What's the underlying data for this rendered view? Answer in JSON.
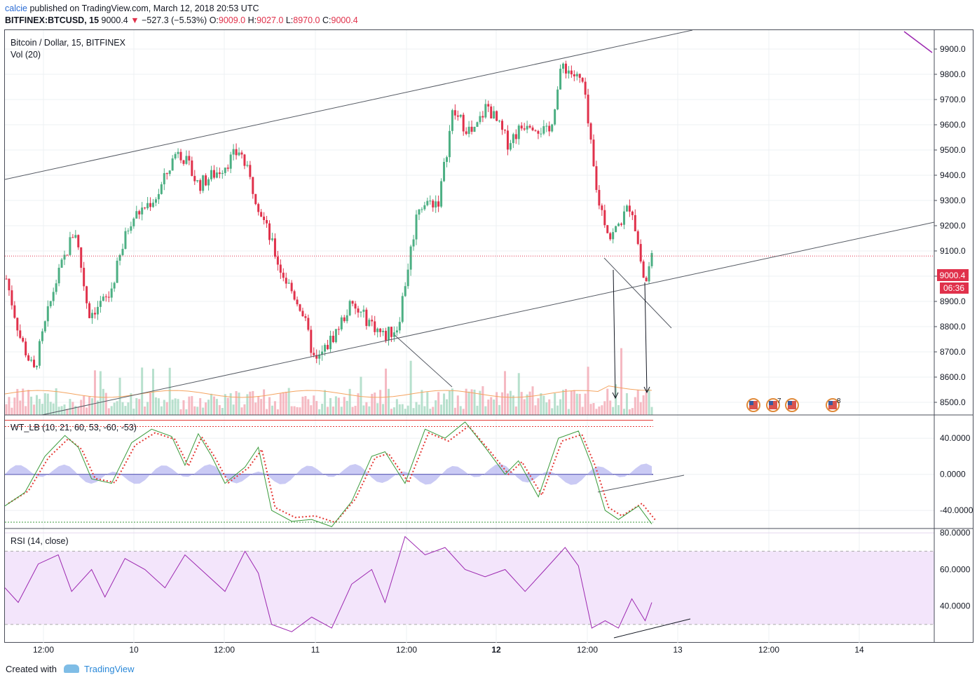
{
  "header": {
    "user": "calcie",
    "published": " published on TradingView.com, March 12, 2018 20:53 UTC",
    "symbol": "BITFINEX:BTCUSD, 15",
    "last": " 9000.4 ",
    "arrow": "▼",
    "change": "−527.3 (−5.53%)",
    "o_label": "O:",
    "o_val": "9009.0",
    "h_label": "H:",
    "h_val": "9027.0",
    "l_label": "L:",
    "l_val": "8970.0",
    "c_label": "C:",
    "c_val": "9000.4"
  },
  "main_legend": {
    "title": "Bitcoin / Dollar, 15, BITFINEX",
    "vol": "Vol (20)"
  },
  "wt_legend": "WT_LB (10, 21, 60, 53, -60, -53)",
  "rsi_legend": "RSI (14, close)",
  "price_badge": "9000.4",
  "timer_badge": "06:36",
  "event_badges": [
    "7",
    "8"
  ],
  "footer": {
    "created": "Created with",
    "brand": "TradingView"
  },
  "colors": {
    "up": "#4caf83",
    "down": "#e0314b",
    "rsi": "#9c27b0",
    "wt_fast": "#3a9a3a",
    "wt_slow": "#e53935"
  },
  "chart_data": [
    {
      "type": "candlestick",
      "title": "Bitcoin / Dollar, 15, BITFINEX",
      "ylim": [
        8450,
        9975
      ],
      "y_ticks": [
        "9900.0",
        "9800.0",
        "9700.0",
        "9600.0",
        "9500.0",
        "9400.0",
        "9300.0",
        "9200.0",
        "9100.0",
        "9000.0",
        "8900.0",
        "8800.0",
        "8700.0",
        "8600.0",
        "8500.0"
      ],
      "x_ticks": [
        "12:00",
        "10",
        "12:00",
        "11",
        "12:00",
        "12",
        "12:00",
        "13",
        "12:00",
        "14"
      ],
      "close_path": [
        [
          0,
          8990
        ],
        [
          0.02,
          8760
        ],
        [
          0.04,
          8620
        ],
        [
          0.07,
          8960
        ],
        [
          0.1,
          9190
        ],
        [
          0.12,
          8850
        ],
        [
          0.15,
          8920
        ],
        [
          0.18,
          9220
        ],
        [
          0.22,
          9320
        ],
        [
          0.25,
          9510
        ],
        [
          0.28,
          9360
        ],
        [
          0.31,
          9420
        ],
        [
          0.34,
          9500
        ],
        [
          0.37,
          9260
        ],
        [
          0.4,
          9020
        ],
        [
          0.43,
          8870
        ],
        [
          0.45,
          8650
        ],
        [
          0.48,
          8780
        ],
        [
          0.5,
          8880
        ],
        [
          0.53,
          8820
        ],
        [
          0.55,
          8760
        ],
        [
          0.57,
          8800
        ],
        [
          0.6,
          9280
        ],
        [
          0.63,
          9300
        ],
        [
          0.65,
          9650
        ],
        [
          0.68,
          9560
        ],
        [
          0.7,
          9680
        ],
        [
          0.73,
          9530
        ],
        [
          0.76,
          9620
        ],
        [
          0.79,
          9560
        ],
        [
          0.81,
          9840
        ],
        [
          0.84,
          9760
        ],
        [
          0.86,
          9320
        ],
        [
          0.88,
          9150
        ],
        [
          0.91,
          9290
        ],
        [
          0.93,
          8960
        ],
        [
          0.94,
          9080
        ]
      ],
      "last_price": 9000.4,
      "current_price_line": 9080
    },
    {
      "type": "line",
      "title": "WT_LB (10, 21, 60, 53, -60, -53)",
      "ylim": [
        -60,
        65
      ],
      "y_ticks": [
        "40.0000",
        "0.0000",
        "-40.0000"
      ],
      "levels": [
        60,
        53,
        -60,
        -53
      ],
      "series": [
        {
          "name": "wt1",
          "points": [
            [
              0,
              -35
            ],
            [
              0.03,
              -20
            ],
            [
              0.06,
              20
            ],
            [
              0.09,
              43
            ],
            [
              0.11,
              30
            ],
            [
              0.13,
              -5
            ],
            [
              0.16,
              -10
            ],
            [
              0.19,
              35
            ],
            [
              0.22,
              50
            ],
            [
              0.25,
              42
            ],
            [
              0.27,
              10
            ],
            [
              0.29,
              45
            ],
            [
              0.31,
              20
            ],
            [
              0.33,
              -10
            ],
            [
              0.36,
              8
            ],
            [
              0.38,
              30
            ],
            [
              0.4,
              -40
            ],
            [
              0.43,
              -52
            ],
            [
              0.46,
              -50
            ],
            [
              0.49,
              -58
            ],
            [
              0.52,
              -30
            ],
            [
              0.55,
              20
            ],
            [
              0.57,
              25
            ],
            [
              0.6,
              -10
            ],
            [
              0.63,
              50
            ],
            [
              0.66,
              40
            ],
            [
              0.69,
              58
            ],
            [
              0.72,
              30
            ],
            [
              0.75,
              0
            ],
            [
              0.77,
              15
            ],
            [
              0.8,
              -25
            ],
            [
              0.83,
              40
            ],
            [
              0.86,
              48
            ],
            [
              0.88,
              10
            ],
            [
              0.9,
              -40
            ],
            [
              0.92,
              -50
            ],
            [
              0.95,
              -35
            ],
            [
              0.97,
              -55
            ]
          ]
        }
      ]
    },
    {
      "type": "line",
      "title": "RSI (14, close)",
      "ylim": [
        20,
        82
      ],
      "y_ticks": [
        "80.0000",
        "60.0000",
        "40.0000"
      ],
      "bands": [
        70,
        30
      ],
      "series": [
        {
          "name": "RSI",
          "points": [
            [
              0,
              50
            ],
            [
              0.02,
              42
            ],
            [
              0.05,
              63
            ],
            [
              0.08,
              68
            ],
            [
              0.1,
              48
            ],
            [
              0.13,
              60
            ],
            [
              0.15,
              45
            ],
            [
              0.18,
              66
            ],
            [
              0.21,
              60
            ],
            [
              0.24,
              50
            ],
            [
              0.27,
              68
            ],
            [
              0.3,
              58
            ],
            [
              0.33,
              48
            ],
            [
              0.36,
              70
            ],
            [
              0.38,
              58
            ],
            [
              0.4,
              30
            ],
            [
              0.43,
              26
            ],
            [
              0.46,
              34
            ],
            [
              0.49,
              28
            ],
            [
              0.52,
              52
            ],
            [
              0.55,
              60
            ],
            [
              0.57,
              42
            ],
            [
              0.6,
              78
            ],
            [
              0.63,
              68
            ],
            [
              0.66,
              72
            ],
            [
              0.69,
              60
            ],
            [
              0.72,
              56
            ],
            [
              0.75,
              60
            ],
            [
              0.78,
              48
            ],
            [
              0.81,
              60
            ],
            [
              0.84,
              72
            ],
            [
              0.86,
              62
            ],
            [
              0.88,
              28
            ],
            [
              0.9,
              32
            ],
            [
              0.92,
              28
            ],
            [
              0.94,
              44
            ],
            [
              0.96,
              32
            ],
            [
              0.97,
              42
            ]
          ]
        }
      ]
    }
  ]
}
